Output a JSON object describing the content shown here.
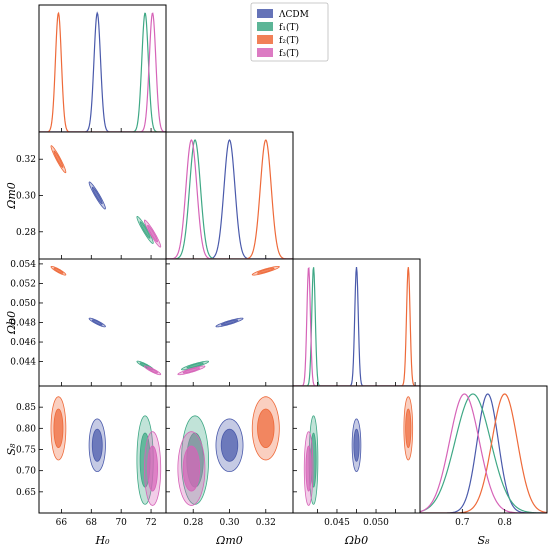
{
  "chart_data": {
    "type": "corner",
    "title": "",
    "parameters": [
      {
        "key": "H0",
        "label": "H₀",
        "range": [
          64.5,
          73.0
        ],
        "ticks": [
          66,
          68,
          70,
          72
        ],
        "tick_labels": [
          "66",
          "68",
          "70",
          "72"
        ]
      },
      {
        "key": "Om",
        "label": "Ωm0",
        "range": [
          0.265,
          0.335
        ],
        "ticks": [
          0.28,
          0.3,
          0.32
        ],
        "tick_labels": [
          "0.28",
          "0.30",
          "0.32"
        ]
      },
      {
        "key": "Ob",
        "label": "Ωb0",
        "range": [
          0.0415,
          0.0545
        ],
        "ticks": [
          0.044,
          0.046,
          0.048,
          0.05,
          0.052,
          0.054
        ],
        "tick_labels": [
          "0.044",
          "0.046",
          "0.048",
          "0.050",
          "0.052",
          "0.054"
        ],
        "x_tick_labels": [
          "",
          "0.045",
          "",
          "0.050",
          "",
          ""
        ]
      },
      {
        "key": "S8",
        "label": "S₈",
        "range": [
          0.6,
          0.9
        ],
        "ticks": [
          0.65,
          0.7,
          0.75,
          0.8,
          0.85
        ],
        "tick_labels": [
          "0.65",
          "0.70",
          "0.75",
          "0.80",
          "0.85"
        ],
        "x_ticks": [
          0.7,
          0.8
        ],
        "x_tick_labels": [
          "0.7",
          "0.8"
        ]
      }
    ],
    "legend": {
      "placement": "top-center"
    },
    "series": [
      {
        "name": "ΛCDM",
        "color": "#4a5aab",
        "mean": {
          "H0": 68.4,
          "Om": 0.3,
          "Ob": 0.048,
          "S8": 0.76
        },
        "sigma": {
          "H0": 0.22,
          "Om": 0.003,
          "Ob": 0.00018,
          "S8": 0.025
        },
        "corr": {
          "H0-Om": -0.95,
          "H0-Ob": -0.9,
          "Om-Ob": 0.9,
          "H0-S8": 0.0,
          "Om-S8": 0.0,
          "Ob-S8": 0.0
        }
      },
      {
        "name": "f₁(T)",
        "color": "#3fa885",
        "mean": {
          "H0": 71.6,
          "Om": 0.281,
          "Ob": 0.0436,
          "S8": 0.725
        },
        "sigma": {
          "H0": 0.22,
          "Om": 0.003,
          "Ob": 0.00018,
          "S8": 0.042
        },
        "corr": {
          "H0-Om": -0.95,
          "H0-Ob": -0.9,
          "Om-Ob": 0.9,
          "H0-S8": 0.0,
          "Om-S8": 0.0,
          "Ob-S8": 0.0
        }
      },
      {
        "name": "f₂(T)",
        "color": "#ee6a3a",
        "mean": {
          "H0": 65.8,
          "Om": 0.32,
          "Ob": 0.0533,
          "S8": 0.8
        },
        "sigma": {
          "H0": 0.2,
          "Om": 0.003,
          "Ob": 0.00018,
          "S8": 0.03
        },
        "corr": {
          "H0-Om": -0.95,
          "H0-Ob": -0.9,
          "Om-Ob": 0.9,
          "H0-S8": 0.0,
          "Om-S8": 0.0,
          "Ob-S8": 0.0
        }
      },
      {
        "name": "f₃(T)",
        "color": "#d664b8",
        "mean": {
          "H0": 72.1,
          "Om": 0.279,
          "Ob": 0.0431,
          "S8": 0.705
        },
        "sigma": {
          "H0": 0.22,
          "Om": 0.003,
          "Ob": 0.00018,
          "S8": 0.035
        },
        "corr": {
          "H0-Om": -0.95,
          "H0-Ob": -0.9,
          "Om-Ob": 0.9,
          "H0-S8": 0.0,
          "Om-S8": 0.0,
          "Ob-S8": 0.0
        }
      }
    ]
  }
}
